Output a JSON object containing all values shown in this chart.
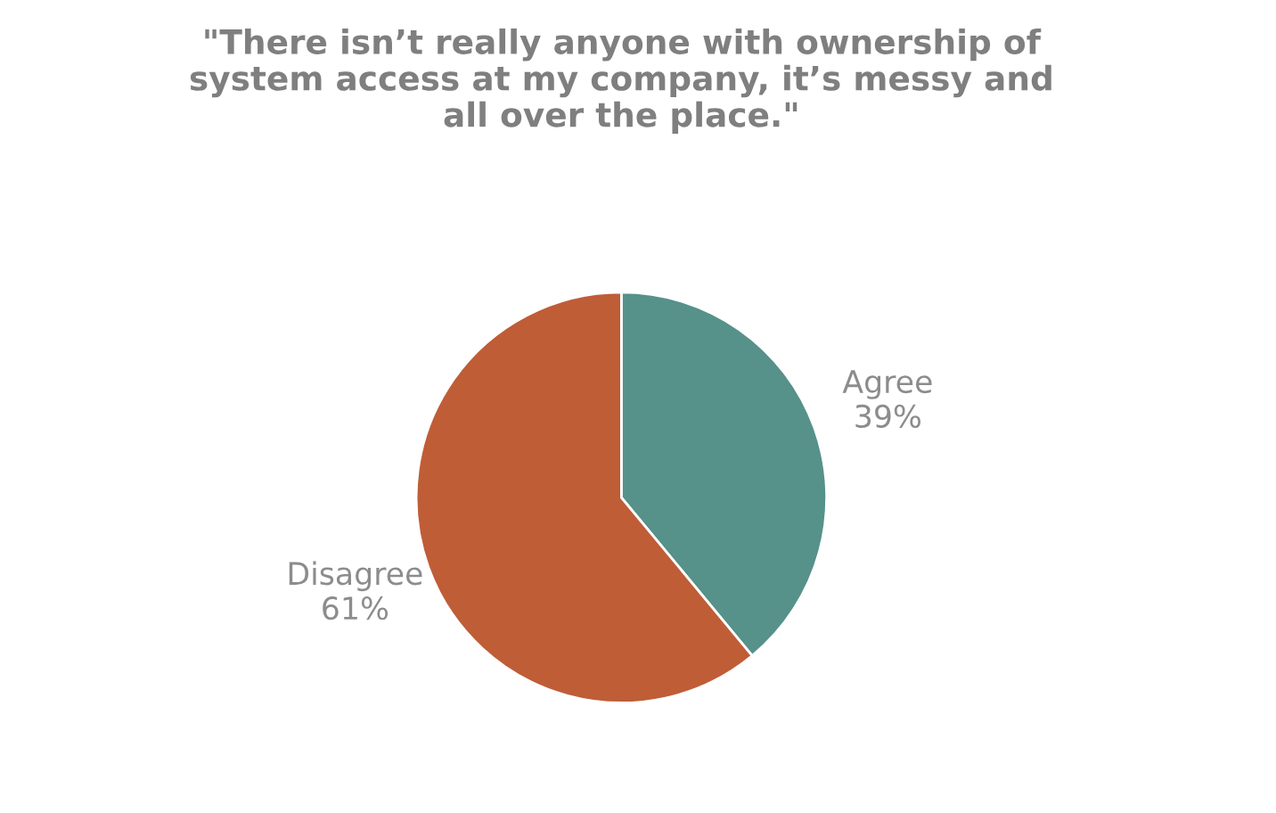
{
  "chart_data": {
    "type": "pie",
    "title": "\"There isn’t really anyone with ownership of\nsystem access at my company, it’s messy and\nall over the place.\"",
    "categories": [
      "Agree",
      "Disagree"
    ],
    "values": [
      39,
      61
    ],
    "colors": [
      "#56918a",
      "#bf5d37"
    ],
    "value_labels": [
      "39%",
      "61%"
    ],
    "legend": false
  }
}
